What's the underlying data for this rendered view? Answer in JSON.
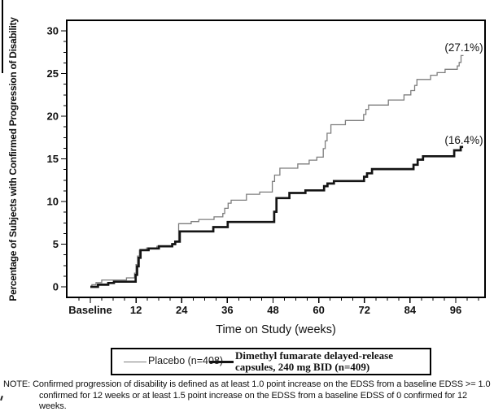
{
  "figure": {
    "y_axis_title": "Percentage of Subjects with Confirmed Progression of Disability",
    "x_axis_title": "Time on Study (weeks)",
    "legend": {
      "placebo_label": "Placebo (n=408)",
      "dmf_label_line1": "Dimethyl fumarate delayed-release",
      "dmf_label_line2": "capsules, 240 mg BID (n=409)"
    },
    "note_line1": "NOTE: Confirmed progression of disability is defined as at least 1.0 point increase on the EDSS from a baseline EDSS >= 1.0",
    "note_line2": "confirmed for 12 weeks or at least 1.5 point increase on the EDSS from a baseline EDSS of 0 confirmed for 12 weeks."
  },
  "chart_data": {
    "type": "line",
    "subtype": "kaplan-meier-step",
    "title": "",
    "xlabel": "Time on Study (weeks)",
    "ylabel": "Percentage of Subjects with Confirmed Progression of Disability",
    "xlim": [
      0,
      96
    ],
    "ylim": [
      0,
      30
    ],
    "grid": false,
    "legend_position": "bottom",
    "x_ticks": [
      {
        "week": 0,
        "label": "Baseline"
      },
      {
        "week": 12,
        "label": "12"
      },
      {
        "week": 24,
        "label": "24"
      },
      {
        "week": 36,
        "label": "36"
      },
      {
        "week": 48,
        "label": "48"
      },
      {
        "week": 60,
        "label": "60"
      },
      {
        "week": 72,
        "label": "72"
      },
      {
        "week": 84,
        "label": "84"
      },
      {
        "week": 96,
        "label": "96"
      }
    ],
    "x_minor_tick_step_weeks": 3,
    "y_ticks": [
      0,
      5,
      10,
      15,
      20,
      25,
      30
    ],
    "y_minor_tick_step": 1.25,
    "series": [
      {
        "name": "Placebo (n=408)",
        "color": "#7d7d7d",
        "width": 1.3,
        "final_label": "(27.1%)",
        "final_value_pct": 27.1,
        "points": [
          [
            0,
            0
          ],
          [
            0.4,
            0.25
          ],
          [
            1.5,
            0.5
          ],
          [
            3,
            0.8
          ],
          [
            9.5,
            1.05
          ],
          [
            11.6,
            1.6
          ],
          [
            12.0,
            2.6
          ],
          [
            12.4,
            3.6
          ],
          [
            12.9,
            4.3
          ],
          [
            14.8,
            4.55
          ],
          [
            17.5,
            4.75
          ],
          [
            21.5,
            5.0
          ],
          [
            22.3,
            5.3
          ],
          [
            23.2,
            7.4
          ],
          [
            26.5,
            7.65
          ],
          [
            28.5,
            7.9
          ],
          [
            32.5,
            8.2
          ],
          [
            34.8,
            8.6
          ],
          [
            35.3,
            9.2
          ],
          [
            36.2,
            9.8
          ],
          [
            37,
            10.15
          ],
          [
            41,
            10.85
          ],
          [
            44.5,
            11.1
          ],
          [
            47.8,
            12.35
          ],
          [
            48.4,
            13.1
          ],
          [
            49.8,
            13.9
          ],
          [
            54.5,
            14.4
          ],
          [
            57.5,
            14.85
          ],
          [
            59.5,
            15.2
          ],
          [
            61.2,
            16.2
          ],
          [
            61.7,
            17.1
          ],
          [
            62.2,
            18.0
          ],
          [
            63.2,
            19.0
          ],
          [
            67,
            19.5
          ],
          [
            71.8,
            20.2
          ],
          [
            72.4,
            20.8
          ],
          [
            73.1,
            21.3
          ],
          [
            78.3,
            21.9
          ],
          [
            82.4,
            22.5
          ],
          [
            84.2,
            23.0
          ],
          [
            85.2,
            23.6
          ],
          [
            85.8,
            24.3
          ],
          [
            89.4,
            24.8
          ],
          [
            91.1,
            25.1
          ],
          [
            93.2,
            25.5
          ],
          [
            96.4,
            25.9
          ],
          [
            96.9,
            26.3
          ],
          [
            97.4,
            27.1
          ]
        ]
      },
      {
        "name": "Dimethyl fumarate delayed-release capsules, 240 mg BID (n=409)",
        "color": "#141414",
        "width": 2.7,
        "final_label": "(16.4%)",
        "final_value_pct": 16.4,
        "points": [
          [
            0,
            0
          ],
          [
            2,
            0.25
          ],
          [
            4.7,
            0.45
          ],
          [
            6.2,
            0.6
          ],
          [
            11.9,
            1.4
          ],
          [
            12.3,
            2.4
          ],
          [
            12.7,
            3.4
          ],
          [
            13.2,
            4.3
          ],
          [
            15.3,
            4.5
          ],
          [
            18,
            4.75
          ],
          [
            21.5,
            5.0
          ],
          [
            22.3,
            5.3
          ],
          [
            23.5,
            6.5
          ],
          [
            32.3,
            7.0
          ],
          [
            36.1,
            7.6
          ],
          [
            48.3,
            8.8
          ],
          [
            48.9,
            10.4
          ],
          [
            52.3,
            11.0
          ],
          [
            56.5,
            11.3
          ],
          [
            61.4,
            11.8
          ],
          [
            62.3,
            12.1
          ],
          [
            64,
            12.4
          ],
          [
            71.9,
            12.9
          ],
          [
            72.7,
            13.3
          ],
          [
            74,
            13.8
          ],
          [
            84.9,
            14.3
          ],
          [
            86,
            14.9
          ],
          [
            87.4,
            15.3
          ],
          [
            95.6,
            16.0
          ],
          [
            97.3,
            16.4
          ]
        ]
      }
    ]
  }
}
